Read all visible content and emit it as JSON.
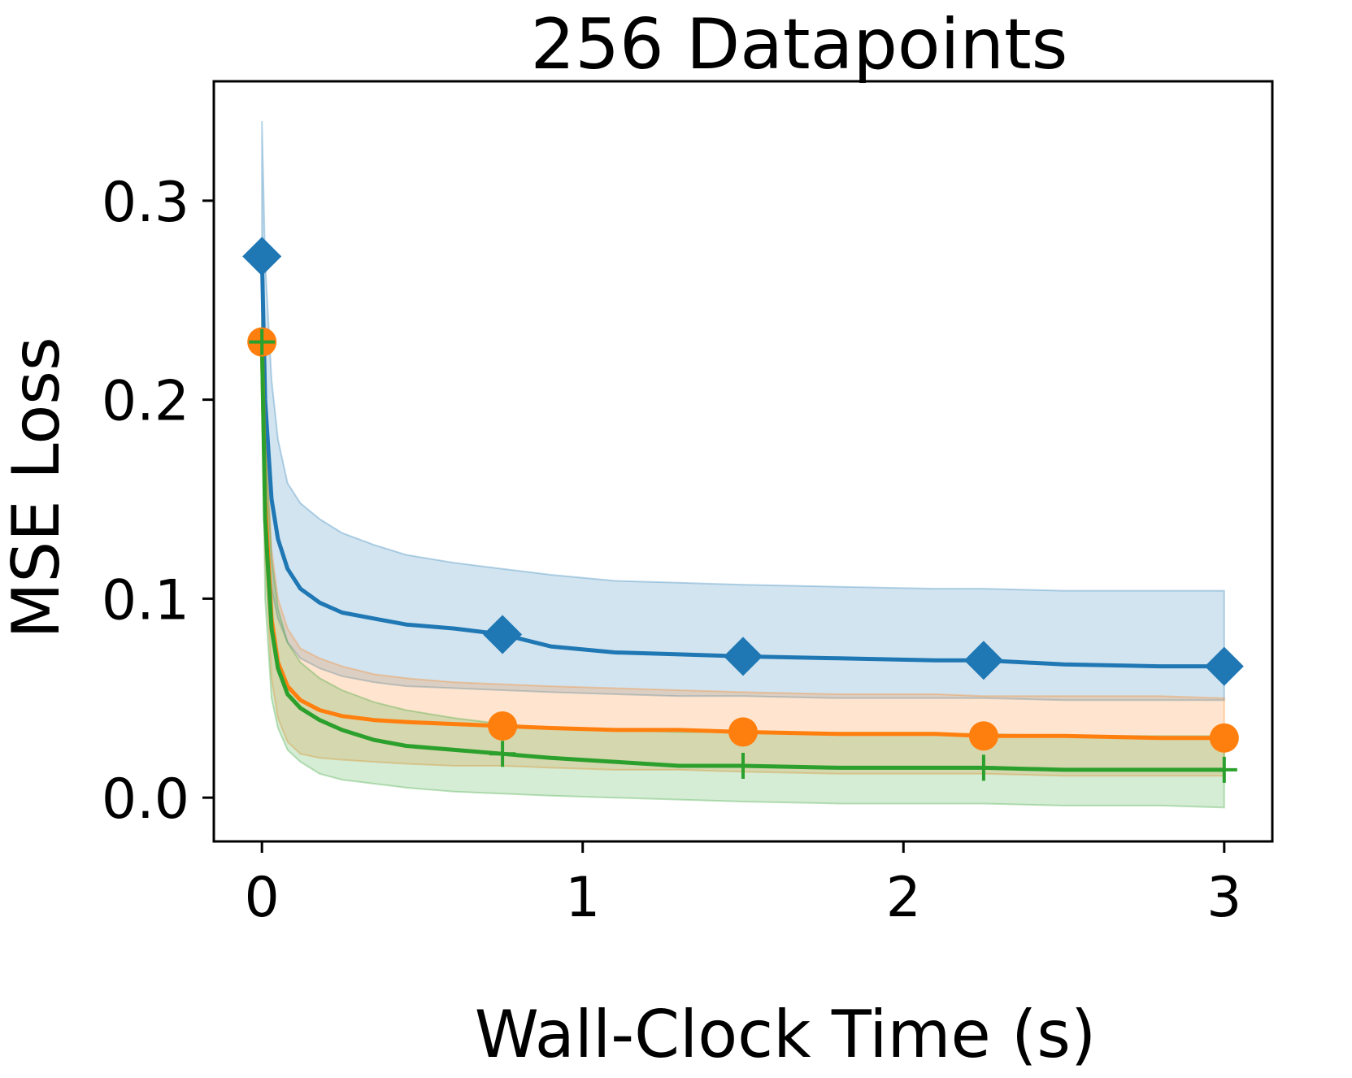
{
  "chart_data": {
    "type": "line",
    "title": "256 Datapoints",
    "xlabel": "Wall-Clock Time (s)",
    "ylabel": "MSE Loss",
    "xlim": [
      -0.15,
      3.15
    ],
    "ylim": [
      -0.022,
      0.36
    ],
    "xticks": [
      0,
      1,
      2,
      3
    ],
    "xtick_labels": [
      "0",
      "1",
      "2",
      "3"
    ],
    "yticks": [
      0.0,
      0.1,
      0.2,
      0.3
    ],
    "ytick_labels": [
      "0.0",
      "0.1",
      "0.2",
      "0.3"
    ],
    "grid": false,
    "legend": "none",
    "series": [
      {
        "color": "#1f77b4",
        "marker": "diamond",
        "markers_x": [
          0,
          0.75,
          1.5,
          2.25,
          3.0
        ],
        "x": [
          0,
          0.01,
          0.03,
          0.05,
          0.08,
          0.12,
          0.18,
          0.25,
          0.35,
          0.45,
          0.6,
          0.75,
          0.9,
          1.1,
          1.3,
          1.5,
          1.8,
          2.1,
          2.25,
          2.5,
          2.8,
          3.0
        ],
        "mean": [
          0.272,
          0.2,
          0.15,
          0.13,
          0.115,
          0.105,
          0.098,
          0.093,
          0.09,
          0.087,
          0.085,
          0.082,
          0.076,
          0.073,
          0.072,
          0.071,
          0.07,
          0.069,
          0.069,
          0.067,
          0.066,
          0.066
        ],
        "upper": [
          0.34,
          0.27,
          0.21,
          0.18,
          0.158,
          0.148,
          0.14,
          0.133,
          0.127,
          0.122,
          0.118,
          0.115,
          0.112,
          0.109,
          0.108,
          0.107,
          0.106,
          0.105,
          0.105,
          0.104,
          0.104,
          0.104
        ],
        "lower": [
          0.2,
          0.14,
          0.105,
          0.09,
          0.078,
          0.07,
          0.065,
          0.061,
          0.058,
          0.056,
          0.055,
          0.054,
          0.053,
          0.052,
          0.051,
          0.051,
          0.05,
          0.05,
          0.05,
          0.049,
          0.049,
          0.049
        ]
      },
      {
        "color": "#ff7f0e",
        "marker": "circle",
        "markers_x": [
          0,
          0.75,
          1.5,
          2.25,
          3.0
        ],
        "x": [
          0,
          0.01,
          0.03,
          0.05,
          0.08,
          0.12,
          0.18,
          0.25,
          0.35,
          0.45,
          0.6,
          0.75,
          0.9,
          1.1,
          1.3,
          1.5,
          1.8,
          2.1,
          2.25,
          2.5,
          2.8,
          3.0
        ],
        "mean": [
          0.229,
          0.15,
          0.09,
          0.068,
          0.056,
          0.049,
          0.044,
          0.041,
          0.039,
          0.038,
          0.037,
          0.036,
          0.035,
          0.034,
          0.034,
          0.033,
          0.032,
          0.032,
          0.031,
          0.031,
          0.03,
          0.03
        ],
        "upper": [
          0.25,
          0.19,
          0.125,
          0.1,
          0.085,
          0.075,
          0.07,
          0.066,
          0.062,
          0.06,
          0.058,
          0.057,
          0.056,
          0.055,
          0.054,
          0.053,
          0.052,
          0.052,
          0.051,
          0.051,
          0.051,
          0.05
        ],
        "lower": [
          0.2,
          0.12,
          0.06,
          0.04,
          0.028,
          0.022,
          0.02,
          0.019,
          0.018,
          0.017,
          0.016,
          0.016,
          0.015,
          0.014,
          0.014,
          0.013,
          0.012,
          0.012,
          0.012,
          0.011,
          0.011,
          0.011
        ]
      },
      {
        "color": "#2ca02c",
        "marker": "plus",
        "markers_x": [
          0,
          0.75,
          1.5,
          2.25,
          3.0
        ],
        "x": [
          0,
          0.01,
          0.03,
          0.05,
          0.08,
          0.12,
          0.18,
          0.25,
          0.35,
          0.45,
          0.6,
          0.75,
          0.9,
          1.1,
          1.3,
          1.5,
          1.8,
          2.1,
          2.25,
          2.5,
          2.8,
          3.0
        ],
        "mean": [
          0.229,
          0.14,
          0.085,
          0.065,
          0.052,
          0.045,
          0.039,
          0.034,
          0.029,
          0.026,
          0.024,
          0.022,
          0.02,
          0.018,
          0.016,
          0.016,
          0.015,
          0.015,
          0.015,
          0.014,
          0.014,
          0.014
        ],
        "upper": [
          0.24,
          0.18,
          0.12,
          0.095,
          0.078,
          0.068,
          0.06,
          0.054,
          0.048,
          0.044,
          0.04,
          0.037,
          0.035,
          0.034,
          0.033,
          0.033,
          0.032,
          0.032,
          0.032,
          0.031,
          0.031,
          0.031
        ],
        "lower": [
          0.22,
          0.1,
          0.05,
          0.035,
          0.024,
          0.018,
          0.012,
          0.009,
          0.007,
          0.005,
          0.003,
          0.002,
          0.001,
          0.0,
          -0.001,
          -0.002,
          -0.003,
          -0.003,
          -0.003,
          -0.004,
          -0.004,
          -0.005
        ]
      }
    ]
  }
}
